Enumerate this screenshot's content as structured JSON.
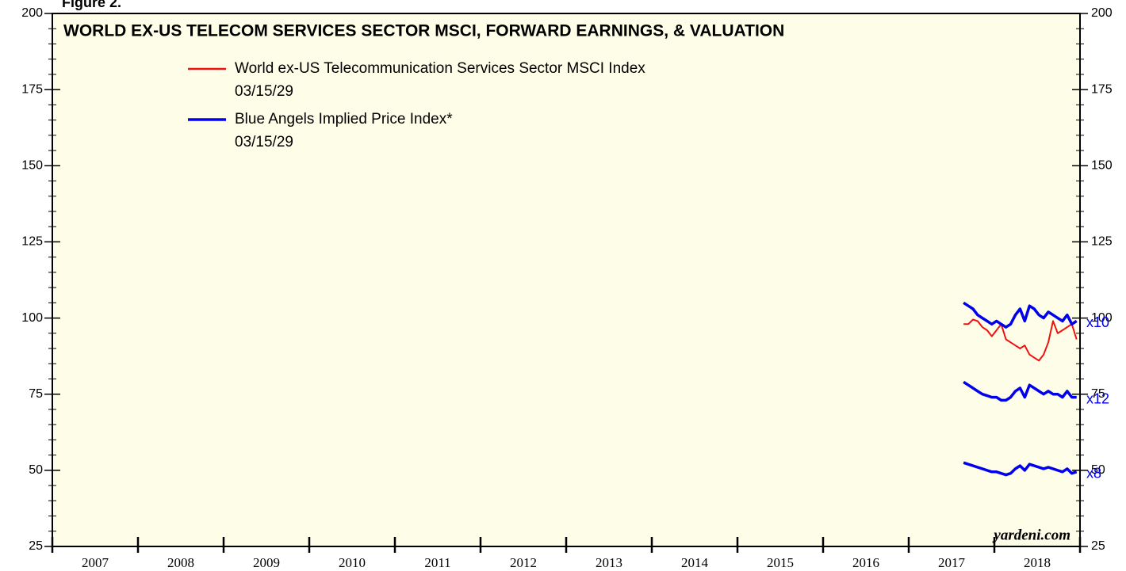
{
  "chart_data": {
    "type": "line",
    "figure_label": "Figure 2.",
    "title": "WORLD EX-US TELECOM SERVICES SECTOR MSCI, FORWARD EARNINGS, & VALUATION",
    "source": "yardeni.com",
    "xlim": [
      2007,
      2019
    ],
    "xticks": [
      2007,
      2008,
      2009,
      2010,
      2011,
      2012,
      2013,
      2014,
      2015,
      2016,
      2017,
      2018,
      2019
    ],
    "year_labels": [
      "2007",
      "2008",
      "2009",
      "2010",
      "2011",
      "2012",
      "2013",
      "2014",
      "2015",
      "2016",
      "2017",
      "2018"
    ],
    "ylim": [
      25,
      200
    ],
    "yticks": [
      25,
      50,
      75,
      100,
      125,
      150,
      175,
      200
    ],
    "yminorticks": [
      30,
      35,
      40,
      45,
      55,
      60,
      65,
      70,
      80,
      85,
      90,
      95,
      105,
      110,
      115,
      120,
      130,
      135,
      140,
      145,
      155,
      160,
      165,
      170,
      180,
      185,
      190,
      195
    ],
    "x": [
      2017.64,
      2017.695,
      2017.75,
      2017.805,
      2017.86,
      2017.915,
      2017.97,
      2018.025,
      2018.08,
      2018.135,
      2018.19,
      2018.245,
      2018.3,
      2018.355,
      2018.41,
      2018.465,
      2018.52,
      2018.575,
      2018.63,
      2018.685,
      2018.74,
      2018.795,
      2018.85,
      2018.905,
      2018.96
    ],
    "series": [
      {
        "name": "World ex-US Telecommunication Services Sector MSCI Index",
        "date": "03/15/29",
        "color": "#ee1111",
        "values": [
          98,
          98,
          99.5,
          99,
          97,
          96,
          94,
          96,
          98,
          93,
          92,
          91,
          90,
          91,
          88,
          87,
          86,
          88,
          92,
          99,
          95,
          96,
          97,
          98,
          93
        ]
      },
      {
        "name": "Blue Angels Implied Price Index*",
        "date": "03/15/29",
        "color": "#0000ee",
        "lines": [
          {
            "label": "x10",
            "values": [
              105,
              104,
              103,
              101,
              100,
              99,
              98,
              99,
              98,
              97,
              98,
              101,
              103,
              99,
              104,
              103,
              101,
              100,
              102,
              101,
              100,
              99,
              101,
              98,
              99
            ]
          },
          {
            "label": "x12",
            "values": [
              79,
              78,
              77,
              76,
              75,
              74.5,
              74,
              74,
              73,
              73,
              74,
              76,
              77,
              74,
              78,
              77,
              76,
              75,
              76,
              75,
              75,
              74,
              76,
              74,
              74
            ]
          },
          {
            "label": "x8",
            "values": [
              52.5,
              52,
              51.5,
              51,
              50.5,
              50,
              49.5,
              49.5,
              49,
              48.5,
              49,
              50.5,
              51.5,
              50,
              52,
              51.5,
              51,
              50.5,
              51,
              50.5,
              50,
              49.5,
              50.5,
              49,
              49.5
            ]
          }
        ]
      }
    ]
  }
}
